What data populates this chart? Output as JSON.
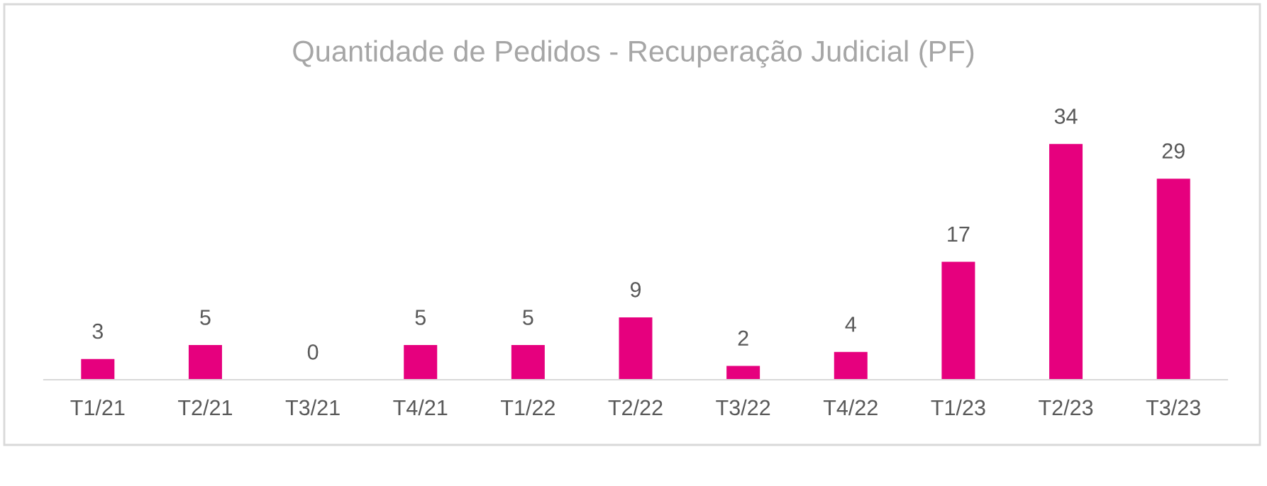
{
  "chart_data": {
    "type": "bar",
    "title": "Quantidade de Pedidos - Recuperação Judicial (PF)",
    "categories": [
      "T1/21",
      "T2/21",
      "T3/21",
      "T4/21",
      "T1/22",
      "T2/22",
      "T3/22",
      "T4/22",
      "T1/23",
      "T2/23",
      "T3/23"
    ],
    "values": [
      3,
      5,
      0,
      5,
      5,
      9,
      2,
      4,
      17,
      34,
      29
    ],
    "color": "#e6007e",
    "data_labels": true,
    "grid": false,
    "legend": false,
    "tick_labels": "x"
  }
}
